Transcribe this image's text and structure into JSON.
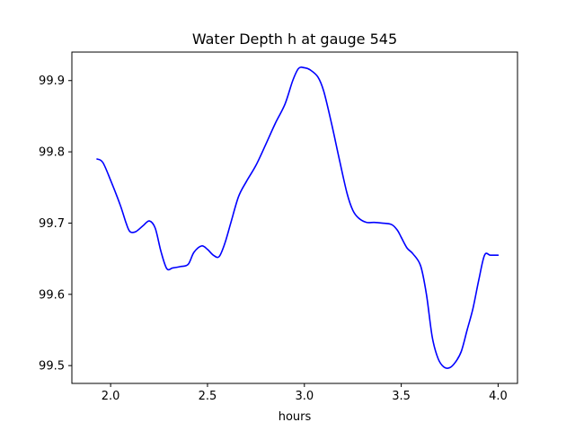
{
  "chart_data": {
    "type": "line",
    "title": "Water Depth h at gauge 545",
    "xlabel": "hours",
    "ylabel": "",
    "xlim": [
      1.8,
      4.1
    ],
    "ylim": [
      99.475,
      99.94
    ],
    "xticks": [
      2.0,
      2.5,
      3.0,
      3.5,
      4.0
    ],
    "xtick_labels": [
      "2.0",
      "2.5",
      "3.0",
      "3.5",
      "4.0"
    ],
    "yticks": [
      99.5,
      99.6,
      99.7,
      99.8,
      99.9
    ],
    "ytick_labels": [
      "99.5",
      "99.6",
      "99.7",
      "99.8",
      "99.9"
    ],
    "grid": false,
    "series": [
      {
        "color": "#0000ff",
        "x": [
          1.93,
          1.96,
          2.0,
          2.05,
          2.08,
          2.1,
          2.13,
          2.17,
          2.2,
          2.23,
          2.26,
          2.29,
          2.32,
          2.36,
          2.4,
          2.43,
          2.47,
          2.5,
          2.53,
          2.56,
          2.59,
          2.62,
          2.66,
          2.7,
          2.75,
          2.8,
          2.85,
          2.9,
          2.94,
          2.97,
          3.0,
          3.03,
          3.07,
          3.1,
          3.14,
          3.18,
          3.22,
          3.25,
          3.28,
          3.32,
          3.36,
          3.4,
          3.45,
          3.48,
          3.5,
          3.53,
          3.56,
          3.6,
          3.63,
          3.66,
          3.69,
          3.72,
          3.75,
          3.78,
          3.81,
          3.84,
          3.87,
          3.9,
          3.93,
          3.96,
          4.0
        ],
        "values": [
          99.79,
          99.785,
          99.76,
          99.725,
          99.7,
          99.688,
          99.688,
          99.697,
          99.703,
          99.693,
          99.66,
          99.636,
          99.637,
          99.639,
          99.642,
          99.659,
          99.668,
          99.663,
          99.655,
          99.653,
          99.672,
          99.7,
          99.737,
          99.758,
          99.781,
          99.81,
          99.84,
          99.867,
          99.9,
          99.917,
          99.918,
          99.915,
          99.905,
          99.885,
          99.84,
          99.79,
          99.742,
          99.718,
          99.707,
          99.701,
          99.701,
          99.7,
          99.698,
          99.69,
          99.68,
          99.665,
          99.657,
          99.64,
          99.6,
          99.54,
          99.51,
          99.498,
          99.497,
          99.505,
          99.52,
          99.55,
          99.58,
          99.62,
          99.655,
          99.655,
          99.655
        ]
      }
    ]
  }
}
